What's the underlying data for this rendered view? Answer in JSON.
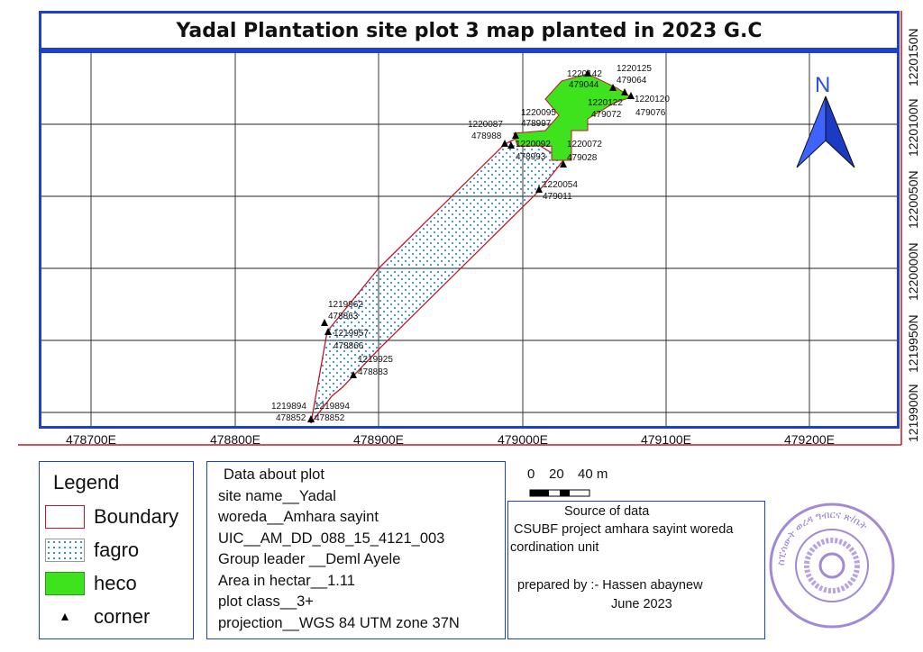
{
  "title": "Yadal Plantation site plot 3 map planted in 2023 G.C",
  "map": {
    "north_label": "N",
    "x_ticks": [
      "478700E",
      "478800E",
      "478900E",
      "479000E",
      "479100E",
      "479200E"
    ],
    "y_ticks": [
      "1219900N",
      "1219950N",
      "1220000N",
      "1220050N",
      "1220100N",
      "1220150N"
    ],
    "colors": {
      "frame": "#1f3fd0",
      "boundary": "#c0182a",
      "fagro_dots": "#3a8fd8",
      "heco": "#3ee31e",
      "north_arrow": "#2a4fe0"
    },
    "corner_labels": [
      {
        "n": "1220142",
        "e": "479044"
      },
      {
        "n": "1220125",
        "e": "479064"
      },
      {
        "n": "1220120",
        "e": "479076"
      },
      {
        "n": "1220122",
        "e": "479072"
      },
      {
        "n": "1220095",
        "e": "478997"
      },
      {
        "n": "1220087",
        "e": "478988"
      },
      {
        "n": "1220092",
        "e": "478993"
      },
      {
        "n": "1220072",
        "e": "479028"
      },
      {
        "n": "1220054",
        "e": "479011"
      },
      {
        "n": "1219962",
        "e": "478863"
      },
      {
        "n": "1219957",
        "e": "478866"
      },
      {
        "n": "1219925",
        "e": "478883"
      },
      {
        "n": "1219894",
        "e": "478852"
      },
      {
        "n": "1219894",
        "e": "478852"
      }
    ]
  },
  "legend": {
    "title": "Legend",
    "items": [
      {
        "label": "Boundary"
      },
      {
        "label": "fagro"
      },
      {
        "label": "heco"
      },
      {
        "label": "corner"
      }
    ]
  },
  "plot_info": {
    "lines": [
      "Data about plot",
      "site name__Yadal",
      "woreda__Amhara sayint",
      "UIC__AM_DD_088_15_4121_003",
      "Group leader __Deml Ayele",
      "Area in hectar__1.11",
      "plot class__3+",
      "projection__WGS 84 UTM zone 37N"
    ]
  },
  "scale_bar": {
    "labels": [
      "0",
      "20",
      "40 m"
    ]
  },
  "source": {
    "heading": "Source of data",
    "line1": "CSUBF project amhara sayint woreda",
    "line2": "cordination unit",
    "prepared": "prepared by :- Hassen abaynew",
    "date": "June 2023"
  },
  "stamp": {
    "text": "ስፒሳውት ወረዳ ግብርና ጽ/ቤት"
  }
}
